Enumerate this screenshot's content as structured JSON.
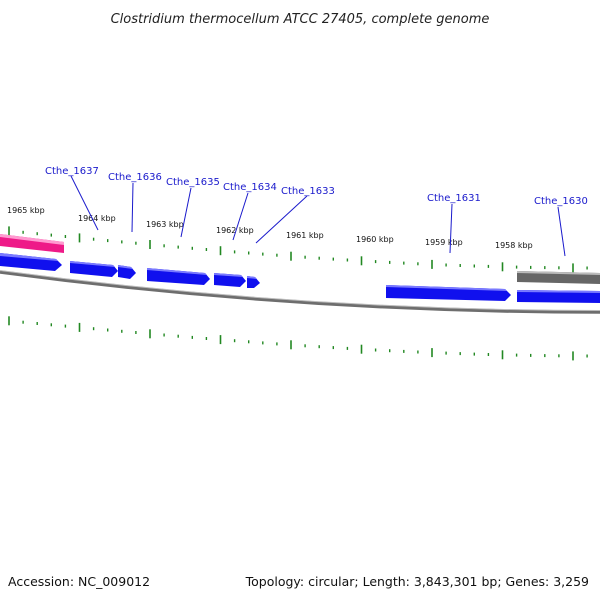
{
  "title": "Clostridium thermocellum ATCC 27405, complete genome",
  "accession": "Accession: NC_009012",
  "summary": "Topology: circular; Length: 3,843,301 bp; Genes: 3,259",
  "colors": {
    "gene": "#1010ee",
    "gene_shade": "#7a7aff",
    "rna": "#ee1a88",
    "rna_shade": "#ff9ad0",
    "backbone": "#777777",
    "tick": "#228822",
    "label": "#1a1acc",
    "gray_feature": "#666666"
  },
  "kbp_labels": [
    "1965 kbp",
    "1964 kbp",
    "1963 kbp",
    "1962 kbp",
    "1961 kbp",
    "1960 kbp",
    "1959 kbp",
    "1958 kbp"
  ],
  "gene_labels": [
    "Cthe_1637",
    "Cthe_1636",
    "Cthe_1635",
    "Cthe_1634",
    "Cthe_1633",
    "Cthe_1631",
    "Cthe_1630"
  ]
}
